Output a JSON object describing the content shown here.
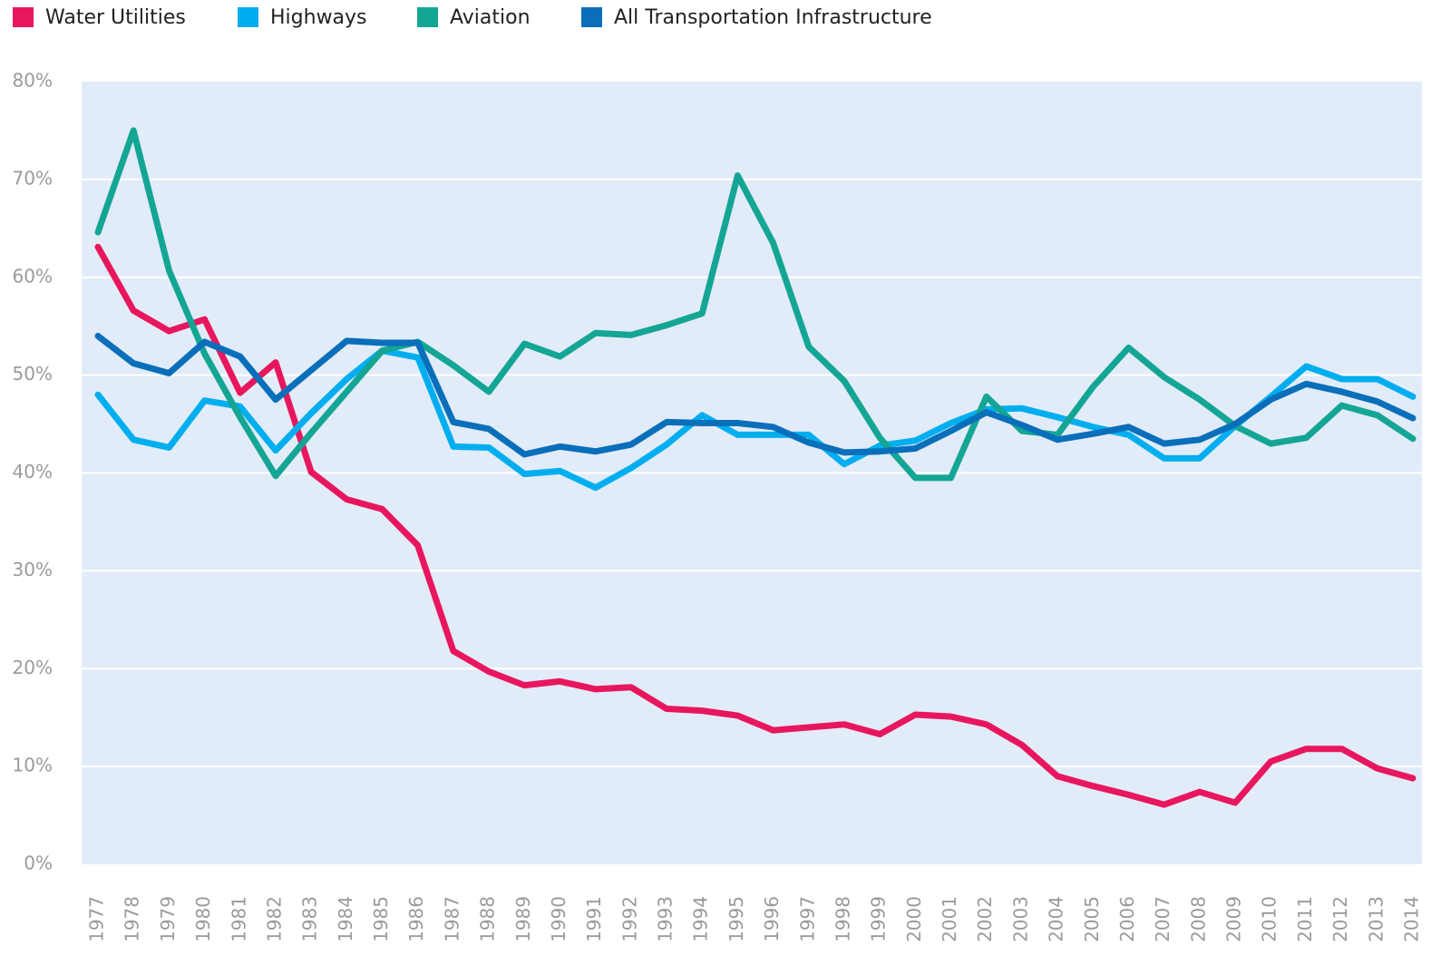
{
  "chart_data": {
    "type": "line",
    "categories": [
      "1977",
      "1978",
      "1979",
      "1980",
      "1981",
      "1982",
      "1983",
      "1984",
      "1985",
      "1986",
      "1987",
      "1988",
      "1989",
      "1990",
      "1991",
      "1992",
      "1993",
      "1994",
      "1995",
      "1996",
      "1997",
      "1998",
      "1999",
      "2000",
      "2001",
      "2002",
      "2003",
      "2004",
      "2005",
      "2006",
      "2007",
      "2008",
      "2009",
      "2010",
      "2011",
      "2012",
      "2013",
      "2014"
    ],
    "series": [
      {
        "name": "Water Utilities",
        "color": "#e8175d",
        "values": [
          63.1,
          56.6,
          54.5,
          55.7,
          48.2,
          51.3,
          40.1,
          37.3,
          36.3,
          32.6,
          21.8,
          19.7,
          18.3,
          18.7,
          17.9,
          18.1,
          15.9,
          15.7,
          15.2,
          13.7,
          14.0,
          14.3,
          13.3,
          15.3,
          15.1,
          14.3,
          12.2,
          9.0,
          8.0,
          7.1,
          6.1,
          7.4,
          6.3,
          10.5,
          11.8,
          11.8,
          9.8,
          8.8
        ]
      },
      {
        "name": "Highways",
        "color": "#00aeef",
        "values": [
          48.0,
          43.4,
          42.6,
          47.4,
          46.8,
          42.3,
          46.1,
          49.6,
          52.5,
          51.8,
          42.7,
          42.6,
          39.9,
          40.2,
          38.5,
          40.5,
          42.9,
          45.9,
          43.9,
          43.9,
          43.9,
          40.9,
          42.8,
          43.3,
          45.1,
          46.5,
          46.6,
          45.7,
          44.7,
          43.9,
          41.5,
          41.5,
          44.8,
          47.8,
          50.9,
          49.6,
          49.6,
          47.8
        ]
      },
      {
        "name": "Aviation",
        "color": "#14a595",
        "values": [
          64.6,
          75.0,
          60.7,
          52.2,
          45.7,
          39.7,
          44.1,
          48.3,
          52.5,
          53.4,
          51.0,
          48.3,
          53.2,
          51.9,
          54.3,
          54.1,
          55.1,
          56.3,
          70.4,
          63.5,
          52.9,
          49.4,
          43.6,
          39.5,
          39.5,
          47.8,
          44.3,
          43.9,
          48.8,
          52.8,
          49.8,
          47.5,
          44.8,
          43.0,
          43.6,
          46.9,
          45.9,
          43.5
        ]
      },
      {
        "name": "All Transportation Infrastructure",
        "color": "#0a6fba",
        "values": [
          54.0,
          51.2,
          50.2,
          53.4,
          51.9,
          47.5,
          50.5,
          53.5,
          53.3,
          53.3,
          45.2,
          44.5,
          41.9,
          42.7,
          42.2,
          42.9,
          45.2,
          45.1,
          45.1,
          44.7,
          43.1,
          42.1,
          42.2,
          42.5,
          44.3,
          46.2,
          44.9,
          43.4,
          44.0,
          44.7,
          43.0,
          43.4,
          45.0,
          47.5,
          49.1,
          48.3,
          47.3,
          45.6
        ]
      }
    ],
    "ylim": [
      0,
      80
    ],
    "yticks": [
      {
        "value": 0,
        "label": "0%"
      },
      {
        "value": 10,
        "label": "10%"
      },
      {
        "value": 20,
        "label": "20%"
      },
      {
        "value": 30,
        "label": "30%"
      },
      {
        "value": 40,
        "label": "40%"
      },
      {
        "value": 50,
        "label": "50%"
      },
      {
        "value": 60,
        "label": "60%"
      },
      {
        "value": 70,
        "label": "70%"
      },
      {
        "value": 80,
        "label": "80%"
      }
    ],
    "grid": true
  }
}
